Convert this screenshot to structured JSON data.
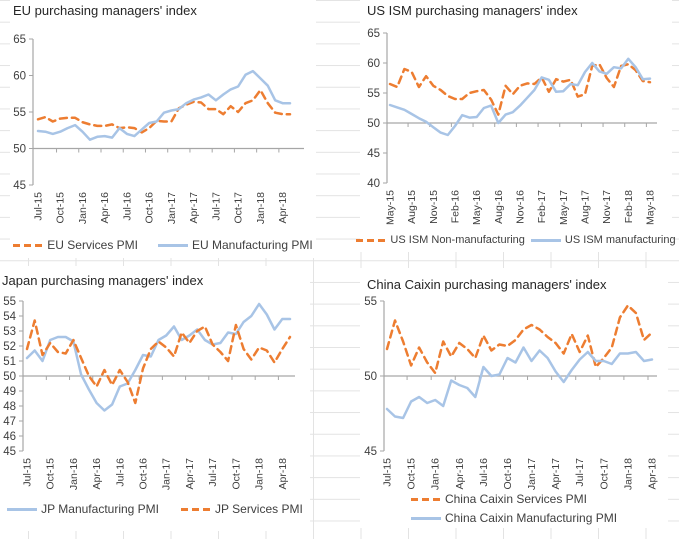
{
  "page": {
    "background_color": "#FFFFFF",
    "gridline_color": "#E3E3E3"
  },
  "colors": {
    "services_orange": "#ED7D31",
    "manufacturing_blue": "#A8C4E6",
    "axis_gray": "#A6A6A6",
    "tick_text": "#404040",
    "title_text": "#262626"
  },
  "chart_data": [
    {
      "id": "eu",
      "type": "line",
      "title": "EU purchasing managers' index",
      "ylim": [
        45,
        65
      ],
      "yticks": [
        45,
        50,
        55,
        60,
        65
      ],
      "baseline": 50,
      "grid": false,
      "legend_position": "bottom",
      "x_labels": [
        "Jul-15",
        "Oct-15",
        "Jan-16",
        "Apr-16",
        "Jul-16",
        "Oct-16",
        "Jan-17",
        "Apr-17",
        "Jul-17",
        "Oct-17",
        "Jan-18",
        "Apr-18"
      ],
      "label_step": 3,
      "series": [
        {
          "name": "EU Services PMI",
          "style": "dashed",
          "color": "#ED7D31",
          "values": [
            54.0,
            54.3,
            53.7,
            54.1,
            54.2,
            54.2,
            53.6,
            53.3,
            53.1,
            53.1,
            53.3,
            52.8,
            52.9,
            52.8,
            52.2,
            52.8,
            53.8,
            53.7,
            53.7,
            55.5,
            56.0,
            56.4,
            56.3,
            55.4,
            55.4,
            54.7,
            55.8,
            55.0,
            56.2,
            56.6,
            58.0,
            56.2,
            54.9,
            54.7,
            54.7
          ]
        },
        {
          "name": "EU Manufacturing PMI",
          "style": "solid",
          "color": "#A8C4E6",
          "values": [
            52.4,
            52.3,
            52.0,
            52.3,
            52.8,
            53.2,
            52.3,
            51.2,
            51.6,
            51.7,
            51.5,
            52.8,
            52.0,
            51.7,
            52.6,
            53.5,
            53.7,
            54.9,
            55.2,
            55.4,
            56.2,
            56.7,
            57.0,
            57.4,
            56.6,
            57.4,
            58.1,
            58.5,
            60.1,
            60.6,
            59.6,
            58.6,
            56.6,
            56.2,
            56.2
          ]
        }
      ]
    },
    {
      "id": "us",
      "type": "line",
      "title": "US ISM purchasing managers' index",
      "ylim": [
        40,
        65
      ],
      "yticks": [
        40,
        45,
        50,
        55,
        60,
        65
      ],
      "baseline": 50,
      "grid": false,
      "legend_position": "bottom",
      "x_labels": [
        "May-15",
        "Aug-15",
        "Nov-15",
        "Feb-16",
        "May-16",
        "Aug-16",
        "Nov-16",
        "Feb-17",
        "May-17",
        "Aug-17",
        "Nov-17",
        "Feb-18",
        "May-18"
      ],
      "label_step": 3,
      "series": [
        {
          "name": "US ISM Non-manufacturing",
          "style": "dashed",
          "color": "#ED7D31",
          "values": [
            56.5,
            56.0,
            59.0,
            58.5,
            56.0,
            57.8,
            56.2,
            55.5,
            54.5,
            54.0,
            54.0,
            55.0,
            55.3,
            55.5,
            53.9,
            51.4,
            56.2,
            54.8,
            56.2,
            56.6,
            56.5,
            57.6,
            55.2,
            57.3,
            56.9,
            57.2,
            54.4,
            54.8,
            59.5,
            59.8,
            57.5,
            56.0,
            59.5,
            59.8,
            58.8,
            57.0,
            56.8
          ]
        },
        {
          "name": "US ISM manufacturing",
          "style": "solid",
          "color": "#A8C4E6",
          "values": [
            53.0,
            52.6,
            52.2,
            51.5,
            50.8,
            50.2,
            49.3,
            48.4,
            48.0,
            49.5,
            51.3,
            50.9,
            51.0,
            52.5,
            52.9,
            50.0,
            51.4,
            51.8,
            52.9,
            54.2,
            55.5,
            57.6,
            57.2,
            55.2,
            55.3,
            56.5,
            56.3,
            58.5,
            60.0,
            58.6,
            58.2,
            59.3,
            59.1,
            60.7,
            59.3,
            57.3,
            57.4
          ]
        }
      ]
    },
    {
      "id": "jp",
      "type": "line",
      "title": "Japan purchasing managers' index",
      "ylim": [
        45,
        55
      ],
      "yticks": [
        45,
        46,
        47,
        48,
        49,
        50,
        51,
        52,
        53,
        54,
        55
      ],
      "baseline": 50,
      "grid": false,
      "legend_position": "bottom",
      "x_labels": [
        "Jul-15",
        "Oct-15",
        "Jan-16",
        "Apr-16",
        "Jul-16",
        "Oct-16",
        "Jan-17",
        "Apr-17",
        "Jul-17",
        "Oct-17",
        "Jan-18",
        "Apr-18"
      ],
      "label_step": 3,
      "series": [
        {
          "name": "JP Manufacturing PMI",
          "style": "solid",
          "color": "#A8C4E6",
          "values": [
            51.2,
            51.7,
            51.0,
            52.4,
            52.6,
            52.6,
            52.3,
            50.1,
            49.1,
            48.2,
            47.7,
            48.1,
            49.3,
            49.5,
            50.4,
            51.4,
            51.3,
            52.4,
            52.7,
            53.3,
            52.4,
            52.7,
            53.1,
            52.4,
            52.1,
            52.2,
            52.9,
            52.8,
            53.6,
            54.0,
            54.8,
            54.1,
            53.1,
            53.8,
            53.8
          ]
        },
        {
          "name": "JP Services PMI",
          "style": "dashed",
          "color": "#ED7D31",
          "values": [
            51.8,
            53.7,
            51.4,
            52.2,
            51.6,
            51.5,
            52.4,
            51.2,
            50.0,
            49.3,
            50.4,
            49.4,
            50.4,
            49.6,
            48.2,
            50.5,
            51.8,
            52.3,
            51.9,
            51.3,
            52.9,
            52.2,
            53.0,
            53.3,
            52.1,
            51.6,
            51.0,
            53.4,
            51.8,
            51.1,
            51.9,
            51.7,
            50.9,
            51.8,
            52.6
          ]
        }
      ]
    },
    {
      "id": "cn",
      "type": "line",
      "title": "China Caixin purchasing managers' index",
      "ylim": [
        45,
        55
      ],
      "yticks": [
        45,
        50,
        55
      ],
      "baseline": 50,
      "grid": false,
      "legend_position": "bottom",
      "x_labels": [
        "Jul-15",
        "Oct-15",
        "Jan-16",
        "Apr-16",
        "Jul-16",
        "Oct-16",
        "Jan-17",
        "Apr-17",
        "Jul-17",
        "Oct-17",
        "Jan-18",
        "Apr-18"
      ],
      "label_step": 3,
      "series": [
        {
          "name": "China Caixin Services PMI",
          "style": "dashed",
          "color": "#ED7D31",
          "values": [
            51.8,
            53.7,
            52.3,
            50.7,
            51.9,
            50.9,
            50.2,
            52.3,
            51.3,
            52.2,
            51.8,
            51.2,
            52.7,
            51.7,
            52.1,
            52.0,
            52.4,
            53.1,
            53.4,
            53.1,
            52.6,
            52.2,
            51.5,
            52.8,
            51.6,
            52.7,
            50.6,
            51.2,
            51.9,
            53.9,
            54.7,
            54.2,
            52.4,
            52.9
          ]
        },
        {
          "name": "China Caixin Manufacturing PMI",
          "style": "solid",
          "color": "#A8C4E6",
          "values": [
            47.8,
            47.3,
            47.2,
            48.3,
            48.6,
            48.2,
            48.4,
            48.0,
            49.7,
            49.4,
            49.2,
            48.6,
            50.6,
            50.0,
            50.1,
            51.2,
            50.9,
            51.9,
            51.0,
            51.7,
            51.2,
            50.3,
            49.6,
            50.4,
            51.1,
            51.6,
            51.0,
            51.0,
            50.8,
            51.5,
            51.5,
            51.6,
            51.0,
            51.1
          ]
        }
      ]
    }
  ]
}
